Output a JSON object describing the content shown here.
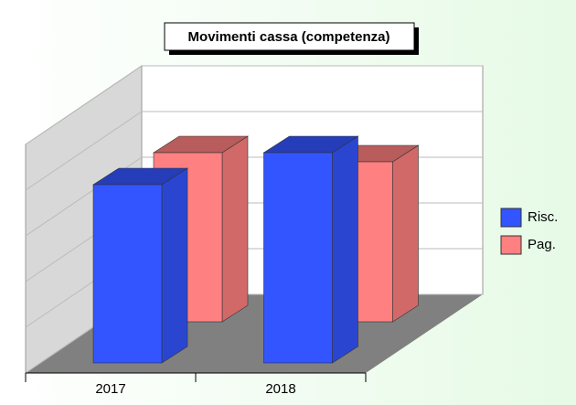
{
  "chart_data": {
    "type": "bar3d",
    "title": "Movimenti cassa (competenza)",
    "categories": [
      "2017",
      "2018"
    ],
    "series": [
      {
        "name": "Risc.",
        "color": "#3355ff",
        "values": [
          3.9,
          4.6
        ]
      },
      {
        "name": "Pag.",
        "color": "#ff8080",
        "values": [
          3.7,
          3.5
        ]
      }
    ],
    "ylim": [
      0,
      5
    ],
    "yticks": [
      0,
      1,
      2,
      3,
      4,
      5
    ],
    "grid": true,
    "legend": "right"
  }
}
